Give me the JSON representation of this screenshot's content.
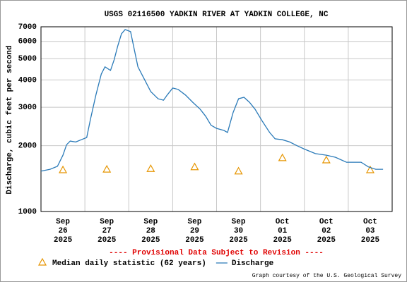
{
  "chart_data": {
    "type": "line",
    "title": "USGS 02116500 YADKIN RIVER AT YADKIN COLLEGE, NC",
    "ylabel": "Discharge, cubic feet per second",
    "annotation": "---- Provisional Data Subject to Revision ----",
    "credit": "Graph courtesy of the U.S. Geological Survey",
    "log_y": true,
    "grid": true,
    "ylim": [
      1000,
      7000
    ],
    "yticks": [
      1000,
      2000,
      3000,
      4000,
      5000,
      6000,
      7000
    ],
    "xlim": [
      "2025-09-26T00:00",
      "2025-10-04T00:00"
    ],
    "xticks": [
      "2025-09-27T00:00",
      "2025-09-28T00:00",
      "2025-09-29T00:00",
      "2025-09-30T00:00",
      "2025-10-01T00:00",
      "2025-10-02T00:00",
      "2025-10-03T00:00"
    ],
    "categories": [
      [
        "Sep",
        "26",
        "2025"
      ],
      [
        "Sep",
        "27",
        "2025"
      ],
      [
        "Sep",
        "28",
        "2025"
      ],
      [
        "Sep",
        "29",
        "2025"
      ],
      [
        "Sep",
        "30",
        "2025"
      ],
      [
        "Oct",
        "01",
        "2025"
      ],
      [
        "Oct",
        "02",
        "2025"
      ],
      [
        "Oct",
        "03",
        "2025"
      ]
    ],
    "series": [
      {
        "name": "Median daily statistic (62 years)",
        "color": "#e69500",
        "marker": "triangle",
        "values": [
          1550,
          1560,
          1570,
          1600,
          1530,
          1760,
          1720,
          1550
        ]
      },
      {
        "name": "Discharge",
        "color": "#2a7ab8",
        "x": [
          "2025-09-26T00:00",
          "2025-09-26T05:00",
          "2025-09-26T09:00",
          "2025-09-26T12:00",
          "2025-09-26T14:00",
          "2025-09-26T16:00",
          "2025-09-26T19:00",
          "2025-09-26T22:00",
          "2025-09-27T01:00",
          "2025-09-27T03:00",
          "2025-09-27T06:00",
          "2025-09-27T09:00",
          "2025-09-27T11:00",
          "2025-09-27T14:00",
          "2025-09-27T16:00",
          "2025-09-27T18:00",
          "2025-09-27T20:00",
          "2025-09-27T22:00",
          "2025-09-28T01:00",
          "2025-09-28T03:00",
          "2025-09-28T05:00",
          "2025-09-28T09:00",
          "2025-09-28T12:00",
          "2025-09-28T16:00",
          "2025-09-28T19:00",
          "2025-09-28T21:00",
          "2025-09-29T00:00",
          "2025-09-29T03:00",
          "2025-09-29T07:00",
          "2025-09-29T11:00",
          "2025-09-29T15:00",
          "2025-09-29T18:00",
          "2025-09-29T21:00",
          "2025-09-30T00:00",
          "2025-09-30T04:00",
          "2025-09-30T06:00",
          "2025-09-30T09:00",
          "2025-09-30T12:00",
          "2025-09-30T15:00",
          "2025-09-30T18:00",
          "2025-09-30T21:00",
          "2025-10-01T01:00",
          "2025-10-01T05:00",
          "2025-10-01T08:00",
          "2025-10-01T12:00",
          "2025-10-01T16:00",
          "2025-10-01T20:00",
          "2025-10-02T00:00",
          "2025-10-02T06:00",
          "2025-10-02T12:00",
          "2025-10-02T17:00",
          "2025-10-02T23:00",
          "2025-10-03T03:00",
          "2025-10-03T07:00",
          "2025-10-03T11:00",
          "2025-10-03T15:00",
          "2025-10-03T19:00"
        ],
        "values": [
          1530,
          1560,
          1610,
          1810,
          2020,
          2100,
          2080,
          2130,
          2180,
          2630,
          3410,
          4260,
          4590,
          4420,
          4940,
          5730,
          6500,
          6800,
          6650,
          5520,
          4590,
          3960,
          3540,
          3280,
          3230,
          3410,
          3670,
          3620,
          3410,
          3160,
          2940,
          2730,
          2480,
          2400,
          2350,
          2300,
          2830,
          3280,
          3330,
          3160,
          2940,
          2590,
          2300,
          2150,
          2130,
          2080,
          2000,
          1930,
          1840,
          1810,
          1770,
          1680,
          1680,
          1680,
          1600,
          1560,
          1560
        ]
      }
    ]
  }
}
